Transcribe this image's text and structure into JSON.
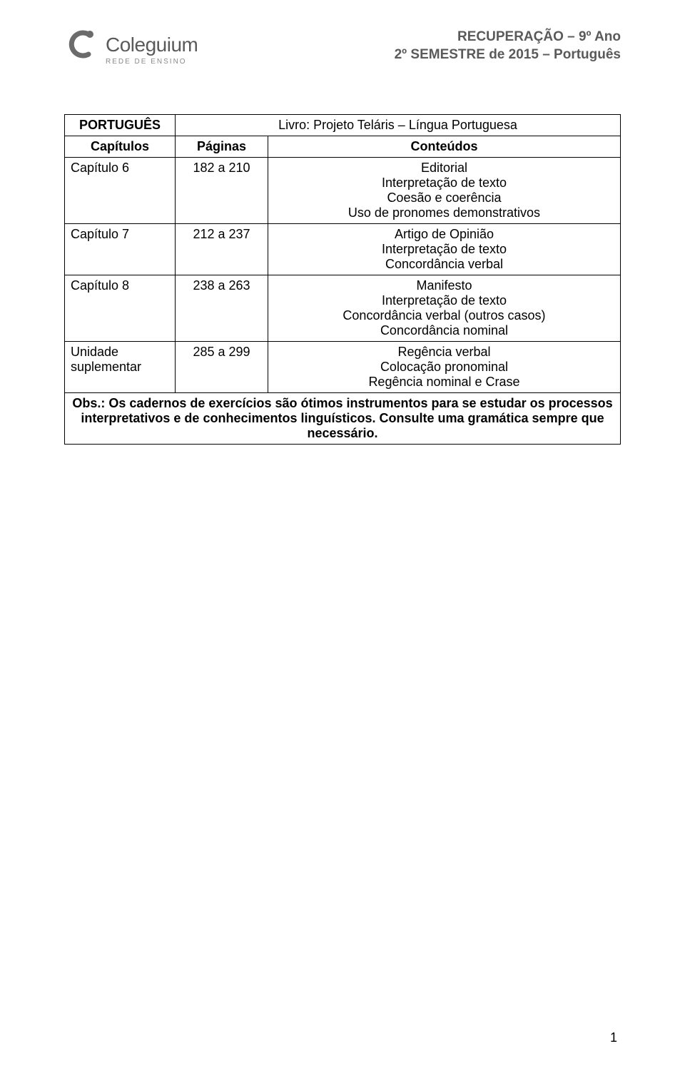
{
  "logo": {
    "name": "Coleguium",
    "subtitle": "REDE DE ENSINO",
    "stroke_color": "#6b6b6b"
  },
  "header": {
    "line1": "RECUPERAÇÃO – 9º Ano",
    "line2": "2º SEMESTRE de 2015 – Português"
  },
  "table": {
    "subject_label": "PORTUGUÊS",
    "book_label": "Livro: Projeto Teláris – Língua Portuguesa",
    "columns": {
      "cap": "Capítulos",
      "pag": "Páginas",
      "cont": "Conteúdos"
    },
    "rows": [
      {
        "cap": "Capítulo 6",
        "pag": "182 a 210",
        "cont": "Editorial\nInterpretação de texto\nCoesão e coerência\nUso de pronomes demonstrativos"
      },
      {
        "cap": "Capítulo 7",
        "pag": "212 a 237",
        "cont": "Artigo de Opinião\nInterpretação de texto\nConcordância verbal"
      },
      {
        "cap": "Capítulo 8",
        "pag": "238 a 263",
        "cont": "Manifesto\nInterpretação de texto\nConcordância verbal (outros casos)\nConcordância nominal"
      },
      {
        "cap": "Unidade\nsuplementar",
        "pag": "285 a 299",
        "cont": "Regência verbal\nColocação pronominal\nRegência nominal e Crase"
      }
    ],
    "obs": "Obs.: Os cadernos de exercícios são ótimos instrumentos para se estudar os processos interpretativos e de conhecimentos linguísticos. Consulte uma gramática sempre que necessário."
  },
  "page_number": "1"
}
